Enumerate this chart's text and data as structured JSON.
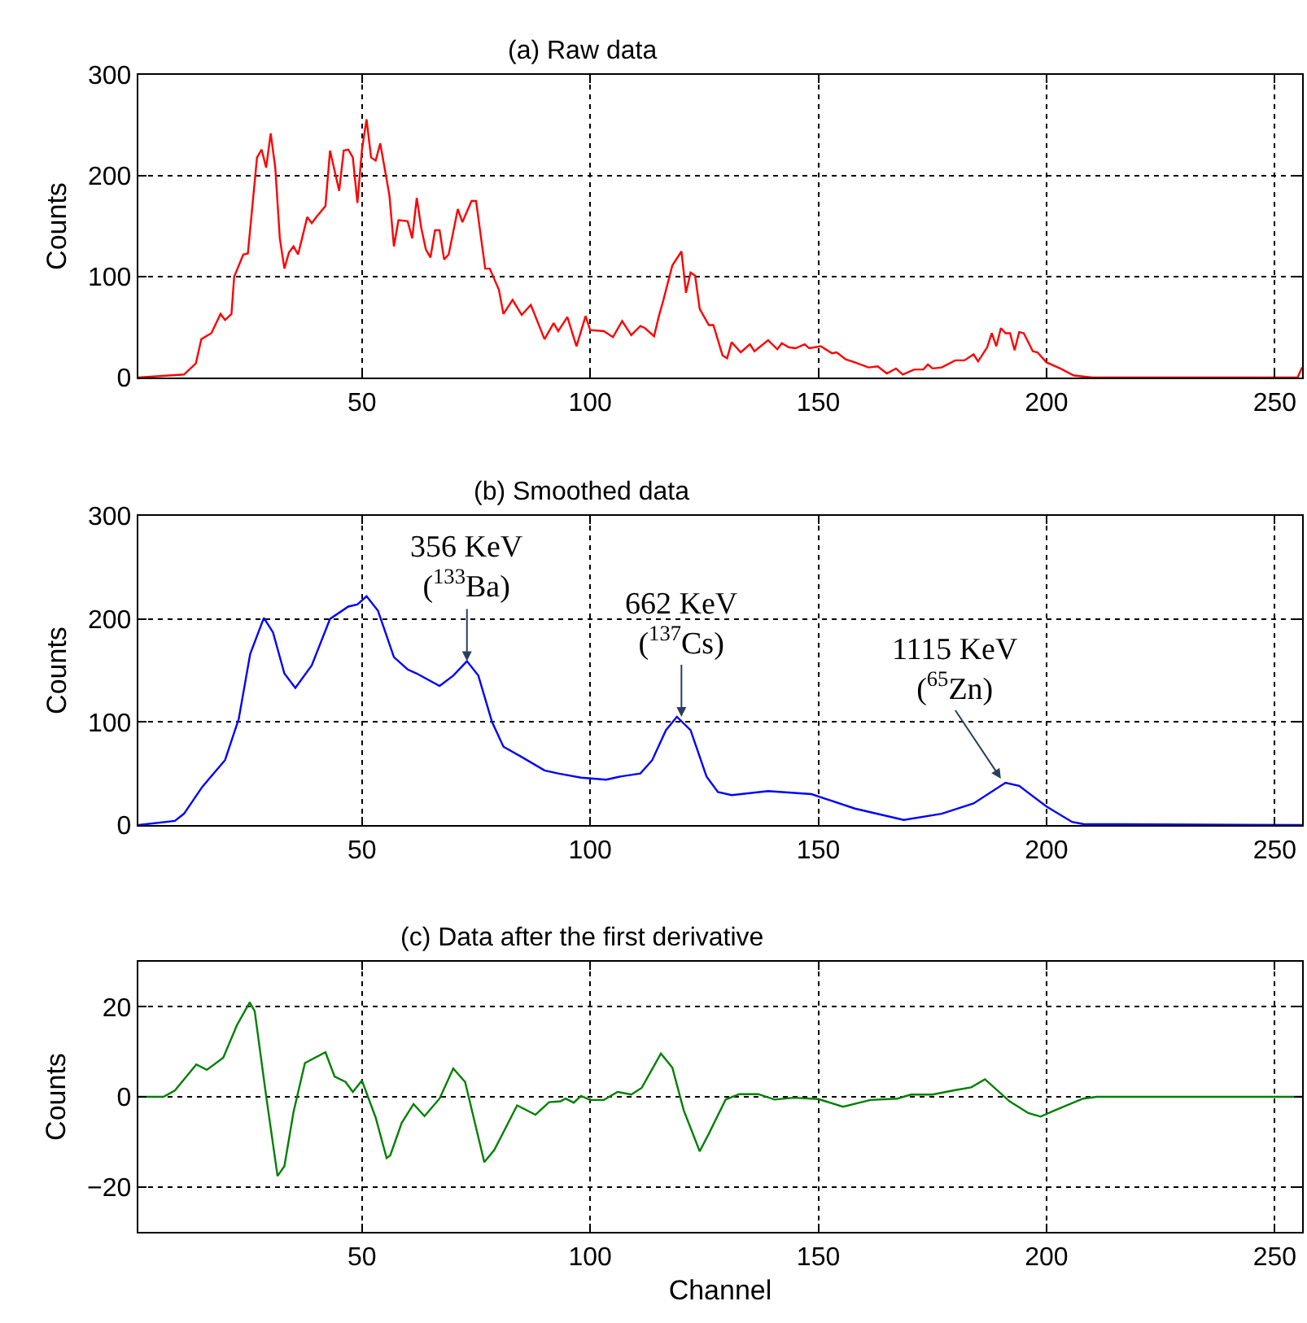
{
  "chart_data": [
    {
      "type": "line",
      "title": "(a) Raw data",
      "ylabel": "Counts",
      "xlim": [
        1,
        256
      ],
      "xticks": [
        50,
        100,
        150,
        200,
        250
      ],
      "ylim": [
        0,
        300
      ],
      "yticks": [
        0,
        100,
        200,
        300
      ],
      "grid": true,
      "series": [
        {
          "color": "#ff0000",
          "x": [
            1,
            11,
            13.6,
            14.8,
            17,
            19,
            20,
            21.4,
            22,
            24,
            25,
            27,
            28,
            29,
            30,
            31,
            32,
            33,
            34,
            35,
            36,
            38,
            39,
            40,
            42,
            43,
            45,
            46,
            47,
            48,
            49,
            50,
            51,
            52,
            53,
            54,
            56,
            57,
            58,
            60,
            61,
            62,
            63,
            64,
            65,
            66,
            67,
            68,
            69,
            71,
            72,
            74,
            75,
            77,
            78,
            80,
            81,
            83,
            85,
            87,
            90,
            92,
            93,
            95,
            97,
            99,
            100,
            103,
            105,
            107,
            109,
            111,
            112,
            114,
            115,
            116,
            118,
            120,
            121,
            122,
            123,
            124,
            126,
            127,
            129,
            130,
            131,
            133,
            135,
            136,
            139,
            141,
            142,
            143.5,
            145,
            147,
            148,
            150.5,
            153,
            154,
            156,
            158,
            161,
            163,
            165,
            167,
            168.5,
            171,
            173,
            174,
            175,
            177,
            180,
            182,
            184,
            185,
            187,
            188,
            189,
            190,
            191,
            192,
            193,
            194,
            195,
            197,
            198,
            200,
            203,
            206,
            210,
            255,
            256
          ],
          "values": [
            0,
            3,
            14,
            38,
            44,
            63,
            57,
            63,
            100,
            122,
            123,
            218,
            226,
            208,
            242,
            208,
            138,
            108,
            124,
            130,
            122,
            159,
            153,
            159,
            170,
            225,
            185,
            225,
            226,
            218,
            173,
            226,
            256,
            218,
            215,
            232,
            181,
            130,
            156,
            155,
            138,
            178,
            148,
            127,
            119,
            146,
            146,
            117,
            122,
            167,
            154,
            175,
            175,
            108,
            108,
            87,
            63,
            77,
            62,
            72,
            38,
            54,
            46,
            60,
            31,
            61,
            47,
            46,
            40,
            56,
            42,
            51,
            49,
            41,
            60,
            76,
            111,
            125,
            84,
            104,
            101,
            68,
            52,
            52,
            22,
            19,
            35,
            25,
            33,
            26,
            37,
            28,
            34,
            30,
            29,
            33,
            29,
            31,
            24,
            25,
            18,
            15,
            10,
            11,
            4,
            9,
            3,
            8,
            8,
            13,
            9,
            10,
            17,
            17,
            23,
            16,
            30,
            44,
            31,
            49,
            44,
            44,
            27,
            45,
            44,
            26,
            25,
            15,
            9,
            2,
            0,
            0,
            10
          ]
        }
      ]
    },
    {
      "type": "line",
      "title": "(b) Smoothed data",
      "ylabel": "Counts",
      "xlim": [
        1,
        256
      ],
      "xticks": [
        50,
        100,
        150,
        200,
        250
      ],
      "ylim": [
        0,
        300
      ],
      "yticks": [
        0,
        100,
        200,
        300
      ],
      "grid": true,
      "series": [
        {
          "color": "#0000ff",
          "x": [
            1,
            9,
            11,
            15,
            20,
            23,
            25.5,
            28.5,
            30.5,
            33,
            35.4,
            39,
            43,
            47,
            49,
            51,
            53.5,
            57,
            60,
            62,
            67,
            70,
            73,
            75.5,
            78.5,
            81,
            85,
            90,
            93,
            98,
            103.5,
            106.5,
            111,
            113.6,
            116.6,
            119,
            122,
            125.5,
            128,
            131,
            139,
            148.5,
            158,
            168.7,
            177,
            184,
            191,
            194,
            200,
            205.6,
            208,
            256
          ],
          "values": [
            0,
            4,
            11,
            37,
            63,
            103,
            166,
            201,
            187,
            147,
            133,
            155,
            200,
            212,
            214,
            222,
            208,
            163,
            151,
            147,
            135,
            145,
            159,
            145,
            100,
            76,
            66,
            53,
            50,
            46,
            44,
            47,
            50,
            63,
            92,
            105,
            92,
            47,
            32,
            29,
            33,
            30,
            16,
            5,
            11,
            21,
            41,
            38,
            18,
            3,
            1,
            0
          ]
        }
      ],
      "annotations": [
        {
          "text": "356 KeV\n($^{133}$Ba)",
          "x": 73,
          "y": 159
        },
        {
          "text": "662 KeV\n($^{137}$Cs)",
          "x": 120,
          "y": 105
        },
        {
          "text": "1115 KeV\n($^{65}$Zn)",
          "x": 190,
          "y": 45
        }
      ]
    },
    {
      "type": "line",
      "title": "(c) Data after the first derivative",
      "xlabel": "Channel",
      "ylabel": "Counts",
      "xlim": [
        1,
        256
      ],
      "xticks": [
        50,
        100,
        150,
        200,
        250
      ],
      "ylim": [
        -30,
        30
      ],
      "yticks": [
        {
          "value": -20,
          "label": "−20"
        },
        0,
        20
      ],
      "grid": true,
      "series": [
        {
          "color": "#008000",
          "x": [
            1,
            6.5,
            9,
            13.7,
            16,
            19.6,
            22.6,
            25.4,
            26.5,
            29,
            31.5,
            33,
            35,
            37.5,
            42,
            44,
            46.4,
            48,
            50,
            53,
            55.4,
            56.2,
            58.7,
            61.3,
            63.7,
            67,
            70,
            72.6,
            76.8,
            79,
            84,
            88,
            91,
            93.5,
            94.6,
            96.4,
            98,
            100,
            103,
            106,
            109,
            111.3,
            115.5,
            118,
            120.5,
            124,
            126,
            129.7,
            132.7,
            136.8,
            140.4,
            144.6,
            150,
            155.4,
            161.4,
            167.3,
            170.3,
            175,
            180,
            183.5,
            186.5,
            191.9,
            196,
            198.7,
            201.4,
            208,
            211,
            256
          ],
          "values": [
            0,
            0,
            1.4,
            7.2,
            6,
            8.7,
            15.9,
            21,
            19,
            0.2,
            -17.6,
            -15.4,
            -3.4,
            7.5,
            9.9,
            4.5,
            3.3,
            1.1,
            3.6,
            -4.6,
            -13.6,
            -13,
            -5.8,
            -1.6,
            -4.3,
            -0.4,
            6.3,
            3.3,
            -14.5,
            -11.8,
            -1.9,
            -4,
            -1.2,
            -1,
            -0.4,
            -1.3,
            0.2,
            -0.7,
            -0.7,
            1.1,
            0.5,
            2,
            9.6,
            6.5,
            -3,
            -12.1,
            -8.2,
            -0.6,
            0.6,
            0.6,
            -0.6,
            -0.2,
            -0.5,
            -2.2,
            -0.7,
            -0.4,
            0.5,
            0.5,
            1.5,
            2.1,
            3.9,
            -1,
            -3.6,
            -4.4,
            -3.2,
            -0.4,
            0,
            0
          ]
        }
      ]
    }
  ]
}
